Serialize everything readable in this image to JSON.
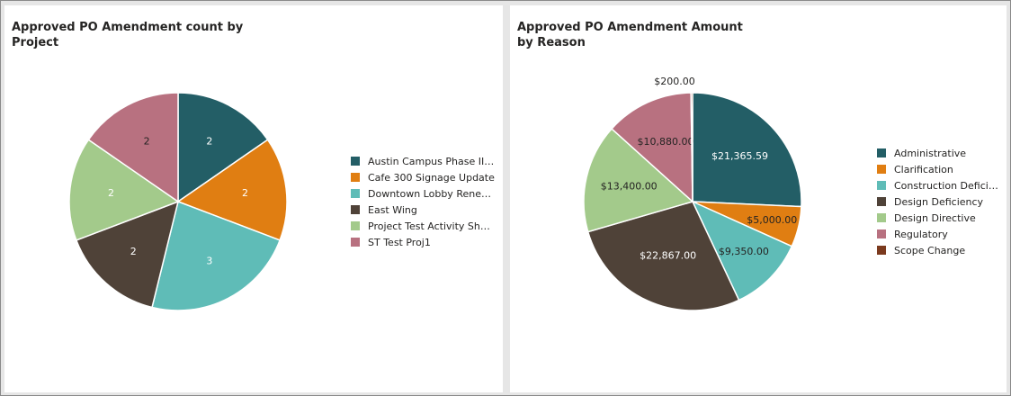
{
  "chart_data": [
    {
      "type": "pie",
      "title": "Approved PO Amendment count by Project",
      "categories": [
        "Austin Campus Phase II Ex...",
        "Cafe 300 Signage Update",
        "Downtown Lobby Renewal",
        "East Wing",
        "Project Test Activity Sheet",
        "ST Test Proj1"
      ],
      "values": [
        2,
        2,
        3,
        2,
        2,
        2
      ],
      "data_labels": [
        "2",
        "2",
        "3",
        "2",
        "2",
        "2"
      ],
      "colors": [
        "#235e66",
        "#e07e12",
        "#5fbcb7",
        "#4f4238",
        "#a3ca8b",
        "#b87180"
      ],
      "label_colors": [
        "#ffffff",
        "#ffffff",
        "#ffffff",
        "#ffffff",
        "#ffffff",
        "#252423"
      ],
      "legend_position": "right"
    },
    {
      "type": "pie",
      "title": "Approved PO Amendment Amount by Reason",
      "categories": [
        "Administrative",
        "Clarification",
        "Construction Deficiency",
        "Design Deficiency",
        "Design Directive",
        "Regulatory",
        "Scope Change"
      ],
      "values": [
        21365.59,
        5000.0,
        9350.0,
        22867.0,
        13400.0,
        10880.0,
        200.0
      ],
      "data_labels": [
        "$21,365.59",
        "$5,000.00",
        "$9,350.00",
        "$22,867.00",
        "$13,400.00",
        "$10,880.00",
        "$200.00"
      ],
      "colors": [
        "#235e66",
        "#e07e12",
        "#5fbcb7",
        "#4f4238",
        "#a3ca8b",
        "#b87180",
        "#7b3a1e"
      ],
      "label_colors": [
        "#ffffff",
        "#252423",
        "#252423",
        "#ffffff",
        "#252423",
        "#252423",
        "#252423"
      ],
      "legend_position": "right"
    }
  ]
}
